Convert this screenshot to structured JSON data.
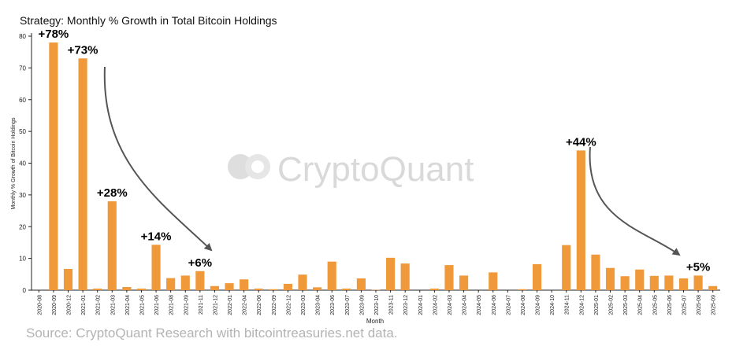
{
  "chart_data": {
    "type": "bar",
    "title": "Strategy: Monthly % Growth in Total Bitcoin Holdings",
    "xlabel": "Month",
    "ylabel": "Monthly % Growth of Bitcoin Holdings",
    "ylim": [
      0,
      80
    ],
    "yticks": [
      0,
      10,
      20,
      30,
      40,
      50,
      60,
      70,
      80
    ],
    "grid": false,
    "bar_color": "#f0993a",
    "categories": [
      "2020-08",
      "2020-09",
      "2020-12",
      "2021-01",
      "2021-02",
      "2021-03",
      "2021-04",
      "2021-05",
      "2021-06",
      "2021-08",
      "2021-09",
      "2021-11",
      "2021-12",
      "2022-01",
      "2022-04",
      "2022-06",
      "2022-09",
      "2022-12",
      "2023-03",
      "2023-04",
      "2023-06",
      "2023-07",
      "2023-09",
      "2023-10",
      "2023-11",
      "2023-12",
      "2024-01",
      "2024-02",
      "2024-03",
      "2024-04",
      "2024-05",
      "2024-06",
      "2024-07",
      "2024-08",
      "2024-09",
      "2024-10",
      "2024-11",
      "2024-12",
      "2025-01",
      "2025-02",
      "2025-03",
      "2025-04",
      "2025-05",
      "2025-06",
      "2025-07",
      "2025-08",
      "2025-09"
    ],
    "values": [
      0,
      78,
      6.7,
      73,
      0.5,
      28,
      1,
      0.5,
      14.3,
      3.8,
      4.6,
      6,
      1.3,
      2.2,
      3.4,
      0.5,
      0.3,
      2,
      4.9,
      0.9,
      9,
      0.5,
      3.7,
      0.1,
      10.2,
      8.4,
      0,
      0.5,
      7.9,
      4.6,
      0,
      5.6,
      0,
      0.3,
      8.2,
      0,
      14.2,
      44,
      11.2,
      7,
      4.4,
      6.5,
      4.5,
      4.6,
      3.7,
      4.6,
      1.3
    ],
    "annotations": [
      {
        "category": "2020-09",
        "text": "+78%"
      },
      {
        "category": "2021-01",
        "text": "+73%"
      },
      {
        "category": "2021-03",
        "text": "+28%"
      },
      {
        "category": "2021-06",
        "text": "+14%"
      },
      {
        "category": "2021-11",
        "text": "+6%"
      },
      {
        "category": "2024-12",
        "text": "+44%"
      },
      {
        "category": "2025-08",
        "text": "+5%"
      }
    ]
  },
  "watermark": "CryptoQuant",
  "source": "Source: CryptoQuant Research with bitcointreasuries.net data."
}
